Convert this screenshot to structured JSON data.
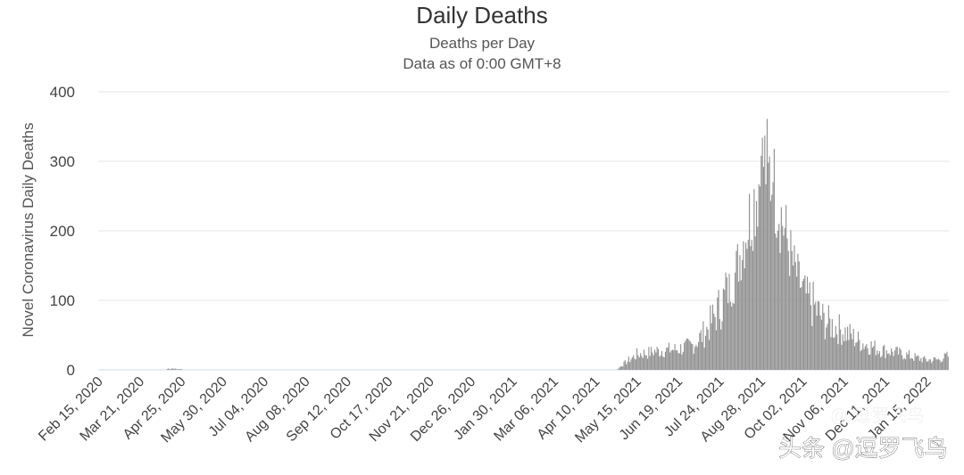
{
  "chart_data": {
    "type": "bar",
    "title": "Daily Deaths",
    "subtitle": [
      "Deaths per Day",
      "Data as of 0:00 GMT+8"
    ],
    "ylabel": "Novel Coronavirus Daily Deaths",
    "xlabel": "",
    "ylim": [
      0,
      400
    ],
    "yticks": [
      0,
      100,
      200,
      300,
      400
    ],
    "grid": true,
    "start_date": "2020-02-15",
    "x_tick_labels": [
      "Feb 15, 2020",
      "Mar 21, 2020",
      "Apr 25, 2020",
      "May 30, 2020",
      "Jul 04, 2020",
      "Aug 08, 2020",
      "Sep 12, 2020",
      "Oct 17, 2020",
      "Nov 21, 2020",
      "Dec 26, 2020",
      "Jan 30, 2021",
      "Mar 06, 2021",
      "Apr 10, 2021",
      "May 15, 2021",
      "Jun 19, 2021",
      "Jul 24, 2021",
      "Aug 28, 2021",
      "Oct 02, 2021",
      "Nov 06, 2021",
      "Dec 11, 2021",
      "Jan 15, 2022"
    ],
    "series": [
      {
        "name": "",
        "color": "#8f8f8f",
        "keyframes": [
          [
            "2020-02-15",
            0
          ],
          [
            "2020-04-12",
            0
          ],
          [
            "2020-04-14",
            2
          ],
          [
            "2020-04-22",
            1
          ],
          [
            "2020-04-30",
            0
          ],
          [
            "2021-04-28",
            0
          ],
          [
            "2021-05-03",
            8
          ],
          [
            "2021-05-15",
            22
          ],
          [
            "2021-06-01",
            27
          ],
          [
            "2021-06-19",
            30
          ],
          [
            "2021-07-01",
            35
          ],
          [
            "2021-07-12",
            55
          ],
          [
            "2021-07-24",
            90
          ],
          [
            "2021-08-05",
            130
          ],
          [
            "2021-08-12",
            180
          ],
          [
            "2021-08-20",
            230
          ],
          [
            "2021-08-26",
            270
          ],
          [
            "2021-08-30",
            300
          ],
          [
            "2021-09-04",
            285
          ],
          [
            "2021-09-10",
            250
          ],
          [
            "2021-09-17",
            200
          ],
          [
            "2021-09-24",
            150
          ],
          [
            "2021-10-02",
            115
          ],
          [
            "2021-10-12",
            90
          ],
          [
            "2021-10-20",
            70
          ],
          [
            "2021-11-06",
            55
          ],
          [
            "2021-11-20",
            40
          ],
          [
            "2021-12-05",
            30
          ],
          [
            "2021-12-20",
            25
          ],
          [
            "2022-01-05",
            18
          ],
          [
            "2022-01-15",
            14
          ],
          [
            "2022-01-25",
            15
          ],
          [
            "2022-02-02",
            20
          ]
        ],
        "end_date": "2022-02-02",
        "peak_spikes": [
          [
            "2021-08-28",
            308
          ],
          [
            "2021-09-03",
            298
          ],
          [
            "2021-09-07",
            270
          ],
          [
            "2021-07-29",
            140
          ]
        ]
      }
    ]
  },
  "watermark": {
    "line1": "@ 逗罗飞鸟",
    "line2": "头条 @逗罗飞鸟"
  }
}
